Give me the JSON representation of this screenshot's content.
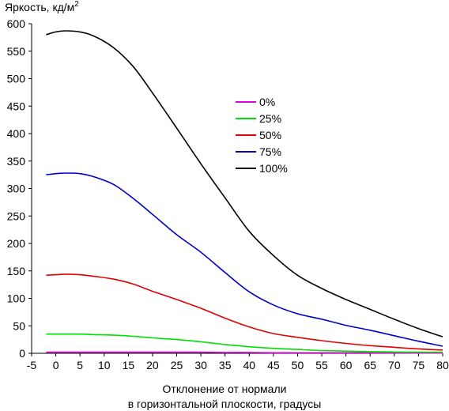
{
  "chart_data": {
    "type": "line",
    "ylabel": "Яркость, кд/м",
    "ylabel_sup": "2",
    "xlabel_line1": "Отклонение от нормали",
    "xlabel_line2": "в горизонтальной плоскости, градусы",
    "xlim": [
      -5,
      80
    ],
    "ylim": [
      0,
      600
    ],
    "xticks": [
      -5,
      0,
      5,
      10,
      15,
      20,
      25,
      30,
      35,
      40,
      45,
      50,
      55,
      60,
      65,
      70,
      75,
      80
    ],
    "yticks": [
      0,
      50,
      100,
      150,
      200,
      250,
      300,
      350,
      400,
      450,
      500,
      550,
      600
    ],
    "legend_position": "center-right",
    "x": [
      -2,
      0,
      2,
      5,
      8,
      12,
      16,
      20,
      25,
      30,
      35,
      40,
      45,
      50,
      55,
      60,
      65,
      70,
      75,
      80
    ],
    "series": [
      {
        "name": "0%",
        "color": "#e000e0",
        "values": [
          2,
          2,
          2,
          2,
          2,
          2,
          2,
          2,
          2,
          2,
          1.5,
          1.5,
          1,
          1,
          1,
          1,
          0.8,
          0.6,
          0.5,
          0.5
        ]
      },
      {
        "name": "25%",
        "color": "#00e000",
        "values": [
          35,
          35,
          35,
          35,
          34,
          33,
          31,
          28,
          25,
          21,
          16,
          12,
          9,
          7,
          5,
          4,
          3,
          2.5,
          2,
          2
        ]
      },
      {
        "name": "50%",
        "color": "#e00000",
        "values": [
          142,
          143,
          144,
          143,
          140,
          135,
          126,
          113,
          98,
          82,
          64,
          48,
          36,
          29,
          23,
          18,
          14,
          11,
          8,
          6
        ]
      },
      {
        "name": "75%",
        "color": "#0000cc",
        "values": [
          325,
          327,
          328,
          327,
          321,
          307,
          282,
          253,
          216,
          184,
          147,
          112,
          88,
          72,
          62,
          51,
          42,
          32,
          22,
          13
        ]
      },
      {
        "name": "100%",
        "color": "#000000",
        "values": [
          580,
          585,
          587,
          585,
          577,
          556,
          522,
          474,
          410,
          345,
          283,
          222,
          178,
          142,
          118,
          98,
          80,
          62,
          45,
          30
        ]
      }
    ]
  }
}
